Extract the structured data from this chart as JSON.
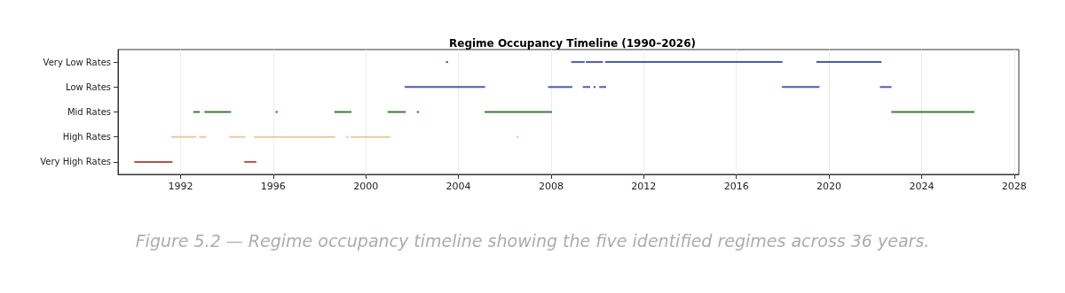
{
  "chart_data": {
    "type": "bar",
    "orientation": "horizontal",
    "title": "Regime Occupancy Timeline (1990–2026)",
    "categories": [
      "Very Low Rates",
      "Low Rates",
      "Mid Rates",
      "High Rates",
      "Very High Rates"
    ],
    "series": [
      {
        "values": [
          0.05,
          3.47,
          0.28,
          1.08,
          1.65
        ],
        "base": [
          2003.46,
          2001.68,
          1992.55,
          1991.6,
          1990.0
        ],
        "colors": [
          "#4c5bab",
          "#4c5bab",
          "#3f7a3a",
          "#e8c9a0",
          "#b5524a"
        ]
      },
      {
        "values": [
          0.58,
          1.05,
          1.15,
          0.3,
          0.52
        ],
        "base": [
          2008.87,
          2007.87,
          1993.03,
          1992.8,
          1994.75
        ],
        "colors": [
          "#4c5bab",
          "#4c5bab",
          "#3f7a3a",
          "#e8c9a0",
          "#b5524a"
        ]
      },
      {
        "values": [
          0.74,
          0.32,
          0.05,
          0.7,
          null
        ],
        "base": [
          2009.5,
          2009.37,
          1996.1,
          1994.1,
          null
        ],
        "colors": [
          "#4c5bab",
          "#4c5bab",
          "#3f7a3a",
          "#e8c9a0",
          null
        ]
      },
      {
        "values": [
          7.65,
          0.09,
          0.74,
          3.51,
          null
        ],
        "base": [
          2010.34,
          2009.83,
          1998.64,
          1995.17,
          null
        ],
        "colors": [
          "#4c5bab",
          "#4c5bab",
          "#3f7a3a",
          "#e8c9a0",
          null
        ]
      },
      {
        "values": [
          2.81,
          0.3,
          0.78,
          0.05,
          null
        ],
        "base": [
          2019.46,
          2010.08,
          2000.94,
          1999.15,
          null
        ],
        "colors": [
          "#4c5bab",
          "#4c5bab",
          "#3f7a3a",
          "#e8c9a0",
          null
        ]
      },
      {
        "values": [
          null,
          1.62,
          0.08,
          1.7,
          null
        ],
        "base": [
          null,
          2017.97,
          2002.2,
          1999.35,
          null
        ],
        "colors": [
          null,
          "#4c5bab",
          "#3f7a3a",
          "#e8c9a0",
          null
        ]
      },
      {
        "values": [
          null,
          0.5,
          2.91,
          0.05,
          null
        ],
        "base": [
          null,
          2022.2,
          2005.13,
          2006.5,
          null
        ],
        "colors": [
          null,
          "#4c5bab",
          "#3f7a3a",
          "#e8c9a0",
          null
        ]
      },
      {
        "values": [
          null,
          null,
          3.59,
          null,
          null
        ],
        "base": [
          null,
          null,
          2022.69,
          null,
          null
        ],
        "colors": [
          null,
          null,
          "#3f7a3a",
          null,
          null
        ]
      }
    ],
    "xlim": [
      1989.3,
      2028.2
    ],
    "xticks": [
      1992,
      1996,
      2000,
      2004,
      2008,
      2012,
      2016,
      2020,
      2024,
      2028
    ],
    "grid": "x",
    "annotations": [
      "Figure 5.2 — Regime occupancy timeline showing the five identified regimes across 36 years."
    ]
  }
}
